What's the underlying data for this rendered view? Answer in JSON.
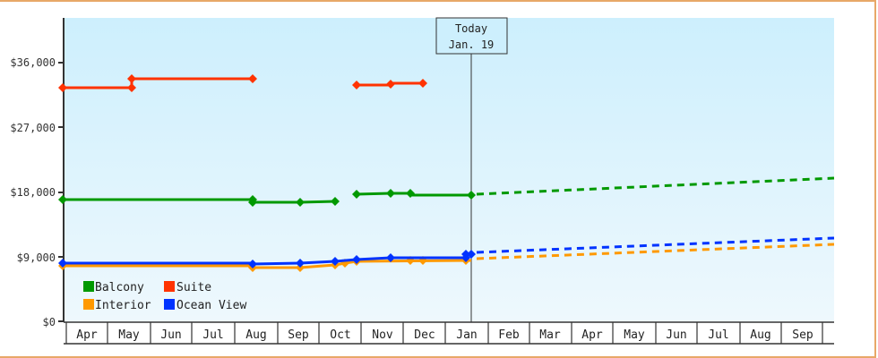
{
  "chart_data": {
    "type": "line",
    "title": "",
    "xlabel": "",
    "ylabel": "",
    "ylim": [
      0,
      42000
    ],
    "yticks": [
      "$0",
      "$9,000",
      "$18,000",
      "$27,000",
      "$36,000"
    ],
    "ytick_values": [
      0,
      9000,
      18000,
      27000,
      36000
    ],
    "categories": [
      "Apr",
      "May",
      "Jun",
      "Jul",
      "Aug",
      "Sep",
      "Oct",
      "Nov",
      "Dec",
      "Jan",
      "Feb",
      "Mar",
      "Apr",
      "May",
      "Jun",
      "Jul",
      "Aug",
      "Sep"
    ],
    "today_marker": {
      "line1": "Today",
      "line2": "Jan. 19"
    },
    "legend_position": "lower-left inside plot",
    "grid": false,
    "series": [
      {
        "name": "Balcony",
        "color": "#009900",
        "segments": [
          {
            "style": "solid",
            "points": [
              [
                "Apr 1",
                16900
              ],
              [
                "Aug 1",
                16900
              ],
              [
                "Aug 1",
                16600
              ],
              [
                "Sep 1",
                16600
              ],
              [
                "Oct 1",
                16700
              ]
            ]
          },
          {
            "style": "solid",
            "points": [
              [
                "Oct 20",
                17700
              ],
              [
                "Nov 1",
                17800
              ],
              [
                "Nov 15",
                17800
              ],
              [
                "Nov 15",
                17600
              ],
              [
                "Jan 19",
                17600
              ]
            ]
          },
          {
            "style": "dotted",
            "label": "forecast",
            "points": [
              [
                "Jan 19",
                17600
              ],
              [
                "Sep 30",
                19800
              ]
            ]
          }
        ]
      },
      {
        "name": "Suite",
        "color": "#ff3300",
        "segments": [
          {
            "style": "solid",
            "points": [
              [
                "Apr 1",
                32500
              ],
              [
                "May 1",
                32500
              ],
              [
                "May 1",
                33800
              ],
              [
                "Aug 1",
                33800
              ]
            ]
          },
          {
            "style": "solid",
            "points": [
              [
                "Oct 20",
                32900
              ],
              [
                "Nov 15",
                32900
              ],
              [
                "Nov 15",
                33100
              ],
              [
                "Dec 10",
                33100
              ]
            ]
          }
        ]
      },
      {
        "name": "Interior",
        "color": "#ff9900",
        "segments": [
          {
            "style": "solid",
            "points": [
              [
                "Apr 1",
                7700
              ],
              [
                "Aug 1",
                7700
              ],
              [
                "Aug 1",
                7500
              ],
              [
                "Sep 1",
                7500
              ],
              [
                "Oct 1",
                7800
              ],
              [
                "Oct 15",
                8300
              ],
              [
                "Nov 1",
                8500
              ],
              [
                "Jan 19",
                8500
              ]
            ]
          },
          {
            "style": "dotted",
            "label": "forecast",
            "points": [
              [
                "Jan 19",
                8600
              ],
              [
                "Sep 30",
                10600
              ]
            ]
          }
        ]
      },
      {
        "name": "Ocean View",
        "color": "#0033ff",
        "segments": [
          {
            "style": "solid",
            "points": [
              [
                "Apr 1",
                8000
              ],
              [
                "Aug 1",
                8000
              ],
              [
                "Aug 1",
                7900
              ],
              [
                "Sep 1",
                8000
              ],
              [
                "Oct 1",
                8300
              ],
              [
                "Oct 20",
                8500
              ],
              [
                "Nov 15",
                8800
              ],
              [
                "Jan 19",
                8800
              ],
              [
                "Jan 19",
                9300
              ]
            ]
          },
          {
            "style": "dotted",
            "label": "forecast",
            "points": [
              [
                "Jan 19",
                9400
              ],
              [
                "Sep 30",
                11600
              ]
            ]
          }
        ]
      }
    ]
  },
  "legend": {
    "items": [
      {
        "label": "Balcony",
        "color": "#009900"
      },
      {
        "label": "Suite",
        "color": "#ff3300"
      },
      {
        "label": "Interior",
        "color": "#ff9900"
      },
      {
        "label": "Ocean View",
        "color": "#0033ff"
      }
    ]
  },
  "y_axis": {
    "labels": [
      "$36,000",
      "$27,000",
      "$18,000",
      "$9,000",
      "$0"
    ]
  },
  "x_axis": {
    "labels": [
      "Apr",
      "May",
      "Jun",
      "Jul",
      "Aug",
      "Sep",
      "Oct",
      "Nov",
      "Dec",
      "Jan",
      "Feb",
      "Mar",
      "Apr",
      "May",
      "Jun",
      "Jul",
      "Aug",
      "Sep"
    ]
  },
  "today": {
    "line1": "Today",
    "line2": "Jan. 19"
  }
}
